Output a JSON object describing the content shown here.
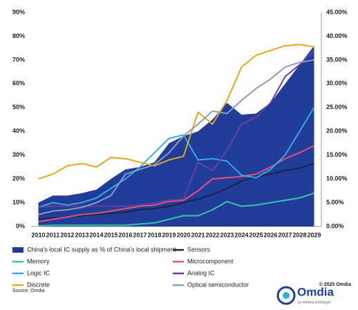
{
  "chart_data": {
    "type": "line",
    "categories": [
      "2010",
      "2011",
      "2012",
      "2013",
      "2014",
      "2015",
      "2016",
      "2017",
      "2018",
      "2019",
      "2020",
      "2021",
      "2022",
      "2023",
      "2024",
      "2025",
      "2026",
      "2027",
      "2028",
      "2029"
    ],
    "ylim": [
      0,
      90
    ],
    "yticks": [
      {
        "value": 0,
        "label": "0%"
      },
      {
        "value": 10,
        "label": "10%"
      },
      {
        "value": 20,
        "label": "20%"
      },
      {
        "value": 30,
        "label": "30%"
      },
      {
        "value": 40,
        "label": "40%"
      },
      {
        "value": 50,
        "label": "50%"
      },
      {
        "value": 60,
        "label": "60%"
      },
      {
        "value": 70,
        "label": "70%"
      },
      {
        "value": 80,
        "label": "80%"
      },
      {
        "value": 90,
        "label": "90%"
      }
    ],
    "y2lim": [
      0,
      45
    ],
    "y2ticks": [
      {
        "value": 0,
        "label": "0.00%"
      },
      {
        "value": 5,
        "label": "5.00%"
      },
      {
        "value": 10,
        "label": "10.00%"
      },
      {
        "value": 15,
        "label": "15.00%"
      },
      {
        "value": 20,
        "label": "20.00%"
      },
      {
        "value": 25,
        "label": "25.00%"
      },
      {
        "value": 30,
        "label": "30.00%"
      },
      {
        "value": 35,
        "label": "35.00%"
      },
      {
        "value": 40,
        "label": "40.00%"
      },
      {
        "value": 45,
        "label": "45.00%"
      }
    ],
    "series": [
      {
        "name": "China's local IC supply as % of China's local shipment",
        "color": "#1f3d99",
        "axis": "y2",
        "kind": "area",
        "values": [
          5,
          6.5,
          6.5,
          7,
          7.75,
          10,
          12,
          12.5,
          13.5,
          17.5,
          19,
          20,
          22.5,
          26,
          23.5,
          23.75,
          26,
          30,
          34,
          38
        ]
      },
      {
        "name": "Sensors",
        "color": "#1b2440",
        "values": [
          3,
          3.5,
          4,
          4.5,
          5,
          5.5,
          6,
          7,
          7.5,
          8.5,
          10,
          11.5,
          13.5,
          16,
          19,
          21,
          22,
          23.5,
          24.5,
          26.5
        ]
      },
      {
        "name": "Memory",
        "color": "#3cc4a6",
        "values": [
          0.3,
          0.5,
          0.5,
          0.5,
          0.5,
          0.5,
          0.5,
          1,
          1.5,
          3,
          4.5,
          4.5,
          7,
          10.5,
          8.5,
          9,
          10,
          11,
          12,
          14
        ]
      },
      {
        "name": "Microcomponent",
        "color": "#e8507a",
        "values": [
          2,
          3,
          4,
          5,
          5.5,
          6.5,
          7.5,
          8.5,
          9,
          10.5,
          11,
          15,
          20,
          20.5,
          21,
          22,
          25,
          28.5,
          31,
          34
        ]
      },
      {
        "name": "Logic IC",
        "color": "#36a9e1",
        "values": [
          8,
          10,
          9,
          10,
          12,
          16,
          20,
          25,
          31,
          37,
          38.5,
          28,
          28.5,
          27.5,
          21.5,
          20.5,
          24,
          30,
          40,
          50
        ]
      },
      {
        "name": "Analog IC",
        "color": "#6b3fa0",
        "values": [
          8,
          8.5,
          8.5,
          8.5,
          8.5,
          8.5,
          8.5,
          9,
          10,
          11,
          11.5,
          27,
          23.5,
          32,
          43,
          46,
          52,
          63,
          68,
          74
        ]
      },
      {
        "name": "Discrete",
        "color": "#e0a81a",
        "values": [
          20,
          22,
          25.5,
          26.5,
          25,
          29,
          28.5,
          27,
          25.5,
          28,
          29.5,
          48,
          43,
          53,
          67,
          72,
          74,
          76,
          76.5,
          75.5
        ]
      },
      {
        "name": "Optical semiconductor",
        "color": "#8e9bb5",
        "values": [
          5,
          6.5,
          7,
          8,
          10,
          13,
          22,
          24,
          26,
          31,
          38,
          43,
          48.5,
          47.5,
          53,
          58,
          62,
          67,
          69,
          70
        ]
      }
    ],
    "source": "Source: Omdia",
    "copyright": "© 2025 Omdia",
    "logo": "Omdia",
    "logo_sub": "by informa techtarget"
  }
}
